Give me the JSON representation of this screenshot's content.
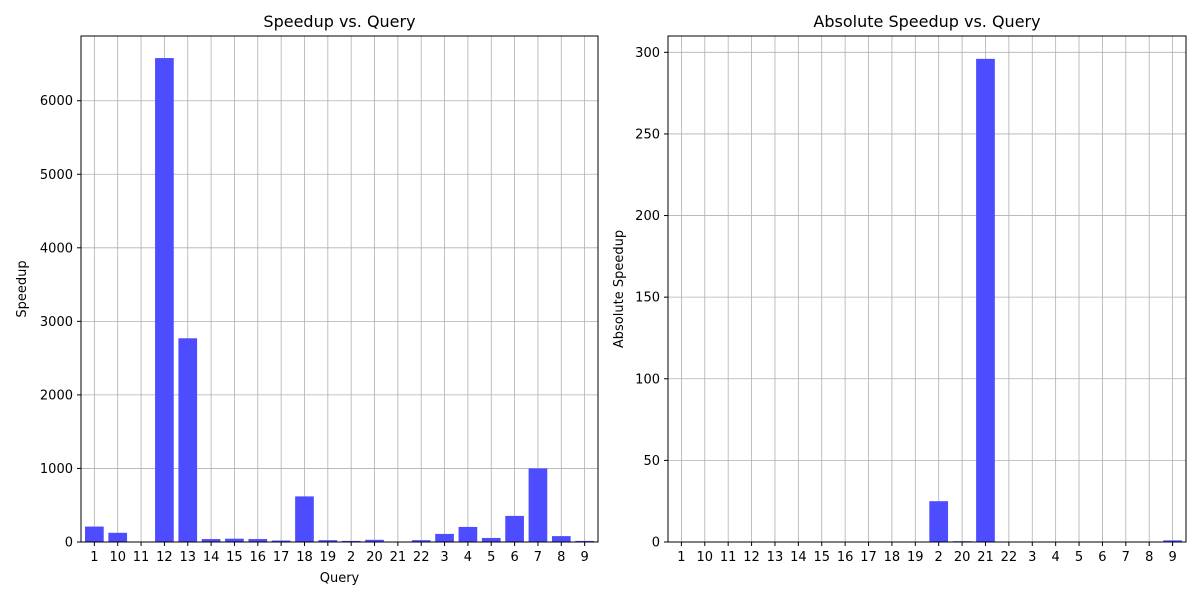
{
  "colors": {
    "bar": "#4d4dff",
    "grid": "#b0b0b0",
    "axis": "#000000"
  },
  "chart_data": [
    {
      "type": "bar",
      "title": "Speedup vs. Query",
      "xlabel": "Query",
      "ylabel": "Speedup",
      "ylim": [
        0,
        6880
      ],
      "yticks": [
        0,
        1000,
        2000,
        3000,
        4000,
        5000,
        6000
      ],
      "grid": true,
      "categories": [
        "1",
        "10",
        "11",
        "12",
        "13",
        "14",
        "15",
        "16",
        "17",
        "18",
        "19",
        "2",
        "20",
        "21",
        "22",
        "3",
        "4",
        "5",
        "6",
        "7",
        "8",
        "9"
      ],
      "values": [
        210,
        125,
        0,
        6580,
        2770,
        40,
        45,
        40,
        20,
        620,
        25,
        15,
        30,
        5,
        25,
        110,
        205,
        55,
        355,
        1000,
        80,
        15
      ]
    },
    {
      "type": "bar",
      "title": "Absolute Speedup vs. Query",
      "xlabel": "",
      "ylabel": "Absolute Speedup",
      "ylim": [
        0,
        310
      ],
      "yticks": [
        0,
        50,
        100,
        150,
        200,
        250,
        300
      ],
      "grid": true,
      "categories": [
        "1",
        "10",
        "11",
        "12",
        "13",
        "14",
        "15",
        "16",
        "17",
        "18",
        "19",
        "2",
        "20",
        "21",
        "22",
        "3",
        "4",
        "5",
        "6",
        "7",
        "8",
        "9"
      ],
      "values": [
        0.05,
        0.05,
        0.05,
        0.05,
        0.05,
        0.05,
        0.05,
        0.05,
        0.05,
        0.05,
        0.05,
        25,
        0.5,
        296,
        0.05,
        0.05,
        0.05,
        0.05,
        0.05,
        0.05,
        0.05,
        1
      ]
    }
  ]
}
